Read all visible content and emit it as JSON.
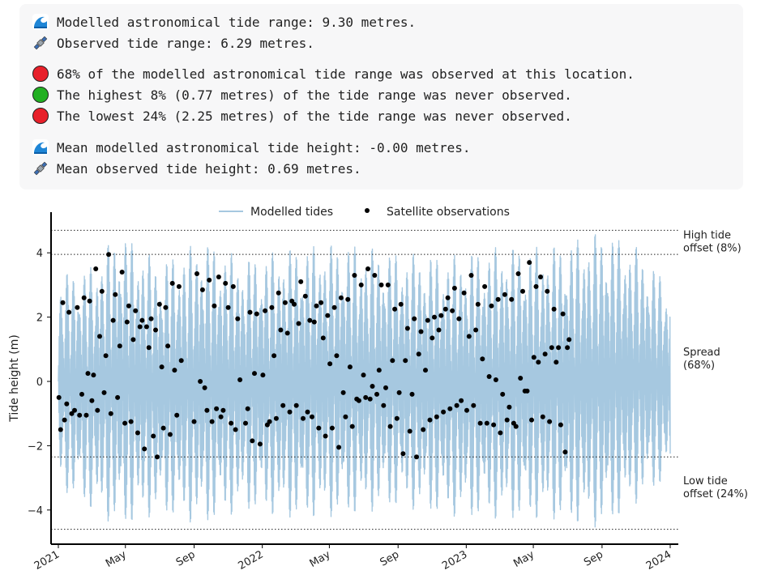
{
  "summary": {
    "modelled_range": "Modelled astronomical tide range: 9.30 metres.",
    "observed_range": "Observed tide range: 6.29 metres.",
    "observed_pct": "68% of the modelled astronomical tide range was observed at this location.",
    "highest_unobserved": "The highest 8% (0.77 metres) of the tide range was never observed.",
    "lowest_unobserved": "The lowest 24% (2.25 metres) of the tide range was never observed.",
    "mean_modelled": "Mean modelled astronomical tide height: -0.00 metres.",
    "mean_observed": "Mean observed tide height: 0.69 metres.",
    "colors": {
      "red": "#e8202a",
      "green": "#22b022"
    },
    "icons": [
      "wave-icon",
      "satellite-icon",
      "red-circle-icon",
      "green-circle-icon"
    ]
  },
  "chart_data": {
    "type": "line",
    "ylabel": "Tide height (m)",
    "ylim": [
      -5.0,
      5.0
    ],
    "yticks": [
      -4,
      -2,
      0,
      2,
      4
    ],
    "ytick_labels": [
      "−4",
      "−2",
      "0",
      "2",
      "4"
    ],
    "xlim": [
      "2021-01-01",
      "2024-01-01"
    ],
    "xticks": [
      {
        "date": "2021-01-01",
        "label": "2021"
      },
      {
        "date": "2021-05-01",
        "label": "May"
      },
      {
        "date": "2021-09-01",
        "label": "Sep"
      },
      {
        "date": "2022-01-01",
        "label": "2022"
      },
      {
        "date": "2022-05-01",
        "label": "May"
      },
      {
        "date": "2022-09-01",
        "label": "Sep"
      },
      {
        "date": "2023-01-01",
        "label": "2023"
      },
      {
        "date": "2023-05-01",
        "label": "May"
      },
      {
        "date": "2023-09-01",
        "label": "Sep"
      },
      {
        "date": "2024-01-01",
        "label": "2024"
      }
    ],
    "legend": {
      "placement": "top-center",
      "modelled": "Modelled tides",
      "satellite": "Satellite observations"
    },
    "colors": {
      "modelled": "#a6c8e0",
      "observations": "#000000"
    },
    "reference_lines": [
      {
        "y": 4.7,
        "label_lines": [
          "High tide",
          "offset (8%)"
        ]
      },
      {
        "y": 3.95,
        "label_lines": [],
        "label_y": 1.0
      },
      {
        "y": -2.35,
        "label_lines": [
          "Spread",
          "(68%)"
        ],
        "label_y": 0.8
      },
      {
        "y": -4.6,
        "label_lines": [
          "Low tide",
          "offset (24%)"
        ],
        "label_y": -3.2
      }
    ],
    "modelled_envelope": [
      {
        "x": "2021-01-01",
        "high": 3.3,
        "low": -3.3
      },
      {
        "x": "2021-03-01",
        "high": 3.6,
        "low": -4.0
      },
      {
        "x": "2021-04-20",
        "high": 4.7,
        "low": -4.6
      },
      {
        "x": "2021-07-01",
        "high": 3.7,
        "low": -4.1
      },
      {
        "x": "2021-09-15",
        "high": 4.4,
        "low": -4.5
      },
      {
        "x": "2021-12-01",
        "high": 3.8,
        "low": -4.0
      },
      {
        "x": "2022-03-01",
        "high": 4.2,
        "low": -4.3
      },
      {
        "x": "2022-06-01",
        "high": 4.3,
        "low": -4.2
      },
      {
        "x": "2022-09-01",
        "high": 4.0,
        "low": -3.9
      },
      {
        "x": "2022-12-01",
        "high": 3.9,
        "low": -4.2
      },
      {
        "x": "2023-03-01",
        "high": 4.2,
        "low": -4.3
      },
      {
        "x": "2023-06-01",
        "high": 4.2,
        "low": -4.3
      },
      {
        "x": "2023-09-05",
        "high": 4.7,
        "low": -4.6
      },
      {
        "x": "2023-11-01",
        "high": 4.2,
        "low": -3.8
      },
      {
        "x": "2024-01-01",
        "high": 3.0,
        "low": -3.0
      }
    ],
    "observations": [
      {
        "x": "2021-01-02",
        "y": -0.5
      },
      {
        "x": "2021-01-05",
        "y": -1.5
      },
      {
        "x": "2021-01-09",
        "y": 2.45
      },
      {
        "x": "2021-01-12",
        "y": -1.2
      },
      {
        "x": "2021-01-16",
        "y": -0.7
      },
      {
        "x": "2021-01-20",
        "y": 2.15
      },
      {
        "x": "2021-01-25",
        "y": -1.0
      },
      {
        "x": "2021-01-30",
        "y": -0.9
      },
      {
        "x": "2021-02-04",
        "y": 2.3
      },
      {
        "x": "2021-02-08",
        "y": -1.05
      },
      {
        "x": "2021-02-12",
        "y": -0.4
      },
      {
        "x": "2021-02-16",
        "y": 2.6
      },
      {
        "x": "2021-02-20",
        "y": -1.05
      },
      {
        "x": "2021-02-23",
        "y": 0.25
      },
      {
        "x": "2021-02-26",
        "y": 2.5
      },
      {
        "x": "2021-03-02",
        "y": -0.6
      },
      {
        "x": "2021-03-05",
        "y": 0.2
      },
      {
        "x": "2021-03-09",
        "y": 3.5
      },
      {
        "x": "2021-03-12",
        "y": -0.9
      },
      {
        "x": "2021-03-16",
        "y": 1.4
      },
      {
        "x": "2021-03-20",
        "y": 2.8
      },
      {
        "x": "2021-03-24",
        "y": -0.35
      },
      {
        "x": "2021-03-27",
        "y": 0.8
      },
      {
        "x": "2021-04-01",
        "y": 3.95
      },
      {
        "x": "2021-04-05",
        "y": -1.0
      },
      {
        "x": "2021-04-09",
        "y": 1.9
      },
      {
        "x": "2021-04-13",
        "y": 2.7
      },
      {
        "x": "2021-04-17",
        "y": -0.5
      },
      {
        "x": "2021-04-21",
        "y": 1.1
      },
      {
        "x": "2021-04-25",
        "y": 3.4
      },
      {
        "x": "2021-04-30",
        "y": -1.3
      },
      {
        "x": "2021-05-04",
        "y": 1.85
      },
      {
        "x": "2021-05-07",
        "y": 2.35
      },
      {
        "x": "2021-05-11",
        "y": -1.25
      },
      {
        "x": "2021-05-15",
        "y": 1.3
      },
      {
        "x": "2021-05-19",
        "y": 2.2
      },
      {
        "x": "2021-05-23",
        "y": -1.6
      },
      {
        "x": "2021-05-27",
        "y": 1.7
      },
      {
        "x": "2021-05-31",
        "y": 1.9
      },
      {
        "x": "2021-06-04",
        "y": -2.1
      },
      {
        "x": "2021-06-08",
        "y": 1.7
      },
      {
        "x": "2021-06-12",
        "y": 1.05
      },
      {
        "x": "2021-06-16",
        "y": 1.95
      },
      {
        "x": "2021-06-20",
        "y": -1.7
      },
      {
        "x": "2021-06-24",
        "y": 1.6
      },
      {
        "x": "2021-06-27",
        "y": -2.35
      },
      {
        "x": "2021-07-01",
        "y": 2.4
      },
      {
        "x": "2021-07-05",
        "y": 0.45
      },
      {
        "x": "2021-07-08",
        "y": -1.45
      },
      {
        "x": "2021-07-12",
        "y": 2.3
      },
      {
        "x": "2021-07-16",
        "y": 1.1
      },
      {
        "x": "2021-07-20",
        "y": -1.65
      },
      {
        "x": "2021-07-24",
        "y": 3.05
      },
      {
        "x": "2021-07-28",
        "y": 0.35
      },
      {
        "x": "2021-08-01",
        "y": -1.05
      },
      {
        "x": "2021-08-05",
        "y": 2.95
      },
      {
        "x": "2021-08-09",
        "y": 0.65
      },
      {
        "x": "2021-09-01",
        "y": -1.25
      },
      {
        "x": "2021-09-06",
        "y": 3.35
      },
      {
        "x": "2021-09-12",
        "y": 0.0
      },
      {
        "x": "2021-09-16",
        "y": 2.85
      },
      {
        "x": "2021-09-20",
        "y": -0.2
      },
      {
        "x": "2021-09-24",
        "y": -0.9
      },
      {
        "x": "2021-09-28",
        "y": 3.15
      },
      {
        "x": "2021-10-03",
        "y": -1.25
      },
      {
        "x": "2021-10-07",
        "y": 2.35
      },
      {
        "x": "2021-10-11",
        "y": -0.85
      },
      {
        "x": "2021-10-15",
        "y": 3.25
      },
      {
        "x": "2021-10-19",
        "y": -1.1
      },
      {
        "x": "2021-10-23",
        "y": -0.9
      },
      {
        "x": "2021-10-27",
        "y": 3.05
      },
      {
        "x": "2021-11-01",
        "y": 2.3
      },
      {
        "x": "2021-11-06",
        "y": -1.3
      },
      {
        "x": "2021-11-10",
        "y": 2.95
      },
      {
        "x": "2021-11-14",
        "y": -1.5
      },
      {
        "x": "2021-11-18",
        "y": 1.95
      },
      {
        "x": "2021-11-22",
        "y": 0.05
      },
      {
        "x": "2021-12-02",
        "y": -1.3
      },
      {
        "x": "2021-12-06",
        "y": -0.85
      },
      {
        "x": "2021-12-10",
        "y": 2.15
      },
      {
        "x": "2021-12-14",
        "y": -1.85
      },
      {
        "x": "2021-12-18",
        "y": 0.25
      },
      {
        "x": "2021-12-22",
        "y": 2.1
      },
      {
        "x": "2021-12-28",
        "y": -1.95
      },
      {
        "x": "2022-01-02",
        "y": 0.2
      },
      {
        "x": "2022-01-06",
        "y": 2.2
      },
      {
        "x": "2022-01-10",
        "y": -1.35
      },
      {
        "x": "2022-01-14",
        "y": -1.25
      },
      {
        "x": "2022-01-18",
        "y": 2.3
      },
      {
        "x": "2022-01-22",
        "y": 0.8
      },
      {
        "x": "2022-01-26",
        "y": -1.15
      },
      {
        "x": "2022-01-30",
        "y": 2.75
      },
      {
        "x": "2022-02-03",
        "y": 1.6
      },
      {
        "x": "2022-02-07",
        "y": -0.75
      },
      {
        "x": "2022-02-11",
        "y": 2.45
      },
      {
        "x": "2022-02-15",
        "y": 1.5
      },
      {
        "x": "2022-02-19",
        "y": -0.95
      },
      {
        "x": "2022-02-23",
        "y": 2.5
      },
      {
        "x": "2022-02-27",
        "y": 2.4
      },
      {
        "x": "2022-03-03",
        "y": -0.75
      },
      {
        "x": "2022-03-07",
        "y": 1.8
      },
      {
        "x": "2022-03-11",
        "y": 3.1
      },
      {
        "x": "2022-03-15",
        "y": -1.15
      },
      {
        "x": "2022-03-19",
        "y": 2.65
      },
      {
        "x": "2022-03-23",
        "y": -0.95
      },
      {
        "x": "2022-03-27",
        "y": 1.9
      },
      {
        "x": "2022-03-31",
        "y": -1.1
      },
      {
        "x": "2022-04-04",
        "y": 1.85
      },
      {
        "x": "2022-04-08",
        "y": 2.35
      },
      {
        "x": "2022-04-12",
        "y": -1.45
      },
      {
        "x": "2022-04-16",
        "y": 2.45
      },
      {
        "x": "2022-04-20",
        "y": 1.35
      },
      {
        "x": "2022-04-24",
        "y": -1.7
      },
      {
        "x": "2022-04-28",
        "y": 2.05
      },
      {
        "x": "2022-05-02",
        "y": 0.55
      },
      {
        "x": "2022-05-06",
        "y": -1.45
      },
      {
        "x": "2022-05-10",
        "y": 2.3
      },
      {
        "x": "2022-05-14",
        "y": 0.8
      },
      {
        "x": "2022-05-18",
        "y": -2.05
      },
      {
        "x": "2022-05-22",
        "y": 2.6
      },
      {
        "x": "2022-05-26",
        "y": -0.35
      },
      {
        "x": "2022-05-30",
        "y": -1.1
      },
      {
        "x": "2022-06-03",
        "y": 2.55
      },
      {
        "x": "2022-06-07",
        "y": 0.45
      },
      {
        "x": "2022-06-11",
        "y": -1.4
      },
      {
        "x": "2022-06-15",
        "y": 3.3
      },
      {
        "x": "2022-06-19",
        "y": -0.55
      },
      {
        "x": "2022-06-23",
        "y": -0.6
      },
      {
        "x": "2022-06-27",
        "y": 3.0
      },
      {
        "x": "2022-07-01",
        "y": 0.2
      },
      {
        "x": "2022-07-05",
        "y": -0.5
      },
      {
        "x": "2022-07-09",
        "y": 3.5
      },
      {
        "x": "2022-07-13",
        "y": -0.55
      },
      {
        "x": "2022-07-17",
        "y": -0.15
      },
      {
        "x": "2022-07-21",
        "y": 3.3
      },
      {
        "x": "2022-07-25",
        "y": -0.4
      },
      {
        "x": "2022-07-29",
        "y": 0.35
      },
      {
        "x": "2022-08-02",
        "y": 3.0
      },
      {
        "x": "2022-08-06",
        "y": -0.75
      },
      {
        "x": "2022-08-10",
        "y": -0.2
      },
      {
        "x": "2022-08-14",
        "y": 3.0
      },
      {
        "x": "2022-08-18",
        "y": -1.4
      },
      {
        "x": "2022-08-22",
        "y": 0.65
      },
      {
        "x": "2022-08-26",
        "y": 2.25
      },
      {
        "x": "2022-08-30",
        "y": -1.15
      },
      {
        "x": "2022-09-03",
        "y": -0.35
      },
      {
        "x": "2022-09-06",
        "y": 2.4
      },
      {
        "x": "2022-09-10",
        "y": -2.25
      },
      {
        "x": "2022-09-14",
        "y": 0.65
      },
      {
        "x": "2022-09-18",
        "y": 1.65
      },
      {
        "x": "2022-09-22",
        "y": -1.55
      },
      {
        "x": "2022-09-26",
        "y": -0.4
      },
      {
        "x": "2022-09-30",
        "y": 1.95
      },
      {
        "x": "2022-10-04",
        "y": -2.35
      },
      {
        "x": "2022-10-08",
        "y": 0.85
      },
      {
        "x": "2022-10-12",
        "y": 1.55
      },
      {
        "x": "2022-10-16",
        "y": -1.5
      },
      {
        "x": "2022-10-20",
        "y": 0.35
      },
      {
        "x": "2022-10-24",
        "y": 1.9
      },
      {
        "x": "2022-10-28",
        "y": -1.2
      },
      {
        "x": "2022-11-01",
        "y": 1.35
      },
      {
        "x": "2022-11-05",
        "y": 2.0
      },
      {
        "x": "2022-11-09",
        "y": -1.1
      },
      {
        "x": "2022-11-13",
        "y": 1.6
      },
      {
        "x": "2022-11-17",
        "y": 2.05
      },
      {
        "x": "2022-11-21",
        "y": -0.95
      },
      {
        "x": "2022-11-25",
        "y": 2.25
      },
      {
        "x": "2022-11-29",
        "y": 2.6
      },
      {
        "x": "2022-12-03",
        "y": -0.85
      },
      {
        "x": "2022-12-07",
        "y": 2.2
      },
      {
        "x": "2022-12-11",
        "y": 2.9
      },
      {
        "x": "2022-12-15",
        "y": -0.75
      },
      {
        "x": "2022-12-19",
        "y": 1.95
      },
      {
        "x": "2022-12-23",
        "y": -0.6
      },
      {
        "x": "2022-12-28",
        "y": 2.75
      },
      {
        "x": "2023-01-02",
        "y": -0.9
      },
      {
        "x": "2023-01-06",
        "y": 1.4
      },
      {
        "x": "2023-01-10",
        "y": 3.3
      },
      {
        "x": "2023-01-14",
        "y": -0.75
      },
      {
        "x": "2023-01-18",
        "y": 1.6
      },
      {
        "x": "2023-01-22",
        "y": 2.4
      },
      {
        "x": "2023-01-26",
        "y": -1.3
      },
      {
        "x": "2023-01-30",
        "y": 0.7
      },
      {
        "x": "2023-02-03",
        "y": 2.95
      },
      {
        "x": "2023-02-07",
        "y": -1.3
      },
      {
        "x": "2023-02-11",
        "y": 0.15
      },
      {
        "x": "2023-02-15",
        "y": 2.35
      },
      {
        "x": "2023-02-19",
        "y": -1.35
      },
      {
        "x": "2023-02-23",
        "y": 0.05
      },
      {
        "x": "2023-02-27",
        "y": 2.55
      },
      {
        "x": "2023-03-03",
        "y": -1.6
      },
      {
        "x": "2023-03-07",
        "y": -0.4
      },
      {
        "x": "2023-03-11",
        "y": 2.7
      },
      {
        "x": "2023-03-15",
        "y": -1.2
      },
      {
        "x": "2023-03-19",
        "y": -0.8
      },
      {
        "x": "2023-03-23",
        "y": 2.55
      },
      {
        "x": "2023-03-27",
        "y": -1.3
      },
      {
        "x": "2023-03-31",
        "y": -1.4
      },
      {
        "x": "2023-04-04",
        "y": 3.35
      },
      {
        "x": "2023-04-08",
        "y": 0.1
      },
      {
        "x": "2023-04-12",
        "y": 2.8
      },
      {
        "x": "2023-04-16",
        "y": -0.3
      },
      {
        "x": "2023-04-20",
        "y": -0.3
      },
      {
        "x": "2023-04-24",
        "y": 3.7
      },
      {
        "x": "2023-04-28",
        "y": -1.2
      },
      {
        "x": "2023-05-02",
        "y": 0.75
      },
      {
        "x": "2023-05-06",
        "y": 2.95
      },
      {
        "x": "2023-05-10",
        "y": 0.6
      },
      {
        "x": "2023-05-14",
        "y": 3.25
      },
      {
        "x": "2023-05-18",
        "y": -1.1
      },
      {
        "x": "2023-05-22",
        "y": 0.85
      },
      {
        "x": "2023-05-26",
        "y": 2.8
      },
      {
        "x": "2023-05-30",
        "y": -1.25
      },
      {
        "x": "2023-06-03",
        "y": 1.05
      },
      {
        "x": "2023-06-07",
        "y": 2.25
      },
      {
        "x": "2023-06-11",
        "y": 0.6
      },
      {
        "x": "2023-06-15",
        "y": 1.05
      },
      {
        "x": "2023-06-19",
        "y": -1.35
      },
      {
        "x": "2023-06-23",
        "y": 2.1
      },
      {
        "x": "2023-06-27",
        "y": -2.2
      },
      {
        "x": "2023-07-01",
        "y": 1.05
      },
      {
        "x": "2023-07-04",
        "y": 1.3
      }
    ]
  }
}
